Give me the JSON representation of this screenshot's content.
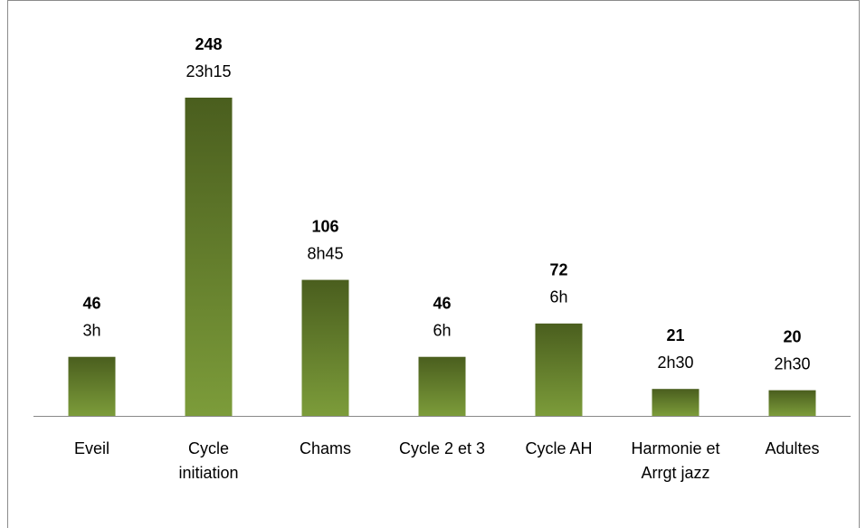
{
  "chart_data": {
    "type": "bar",
    "categories": [
      "Eveil",
      "Cycle initiation",
      "Chams",
      "Cycle 2 et 3",
      "Cycle AH",
      "Harmonie et Arrgt jazz",
      "Adultes"
    ],
    "values": [
      46,
      248,
      106,
      46,
      72,
      21,
      20
    ],
    "hours": [
      "3h",
      "23h15",
      "8h45",
      "6h",
      "6h",
      "2h30",
      "2h30"
    ],
    "color": [
      "#4a5e1e",
      "#7c9c3a"
    ]
  }
}
